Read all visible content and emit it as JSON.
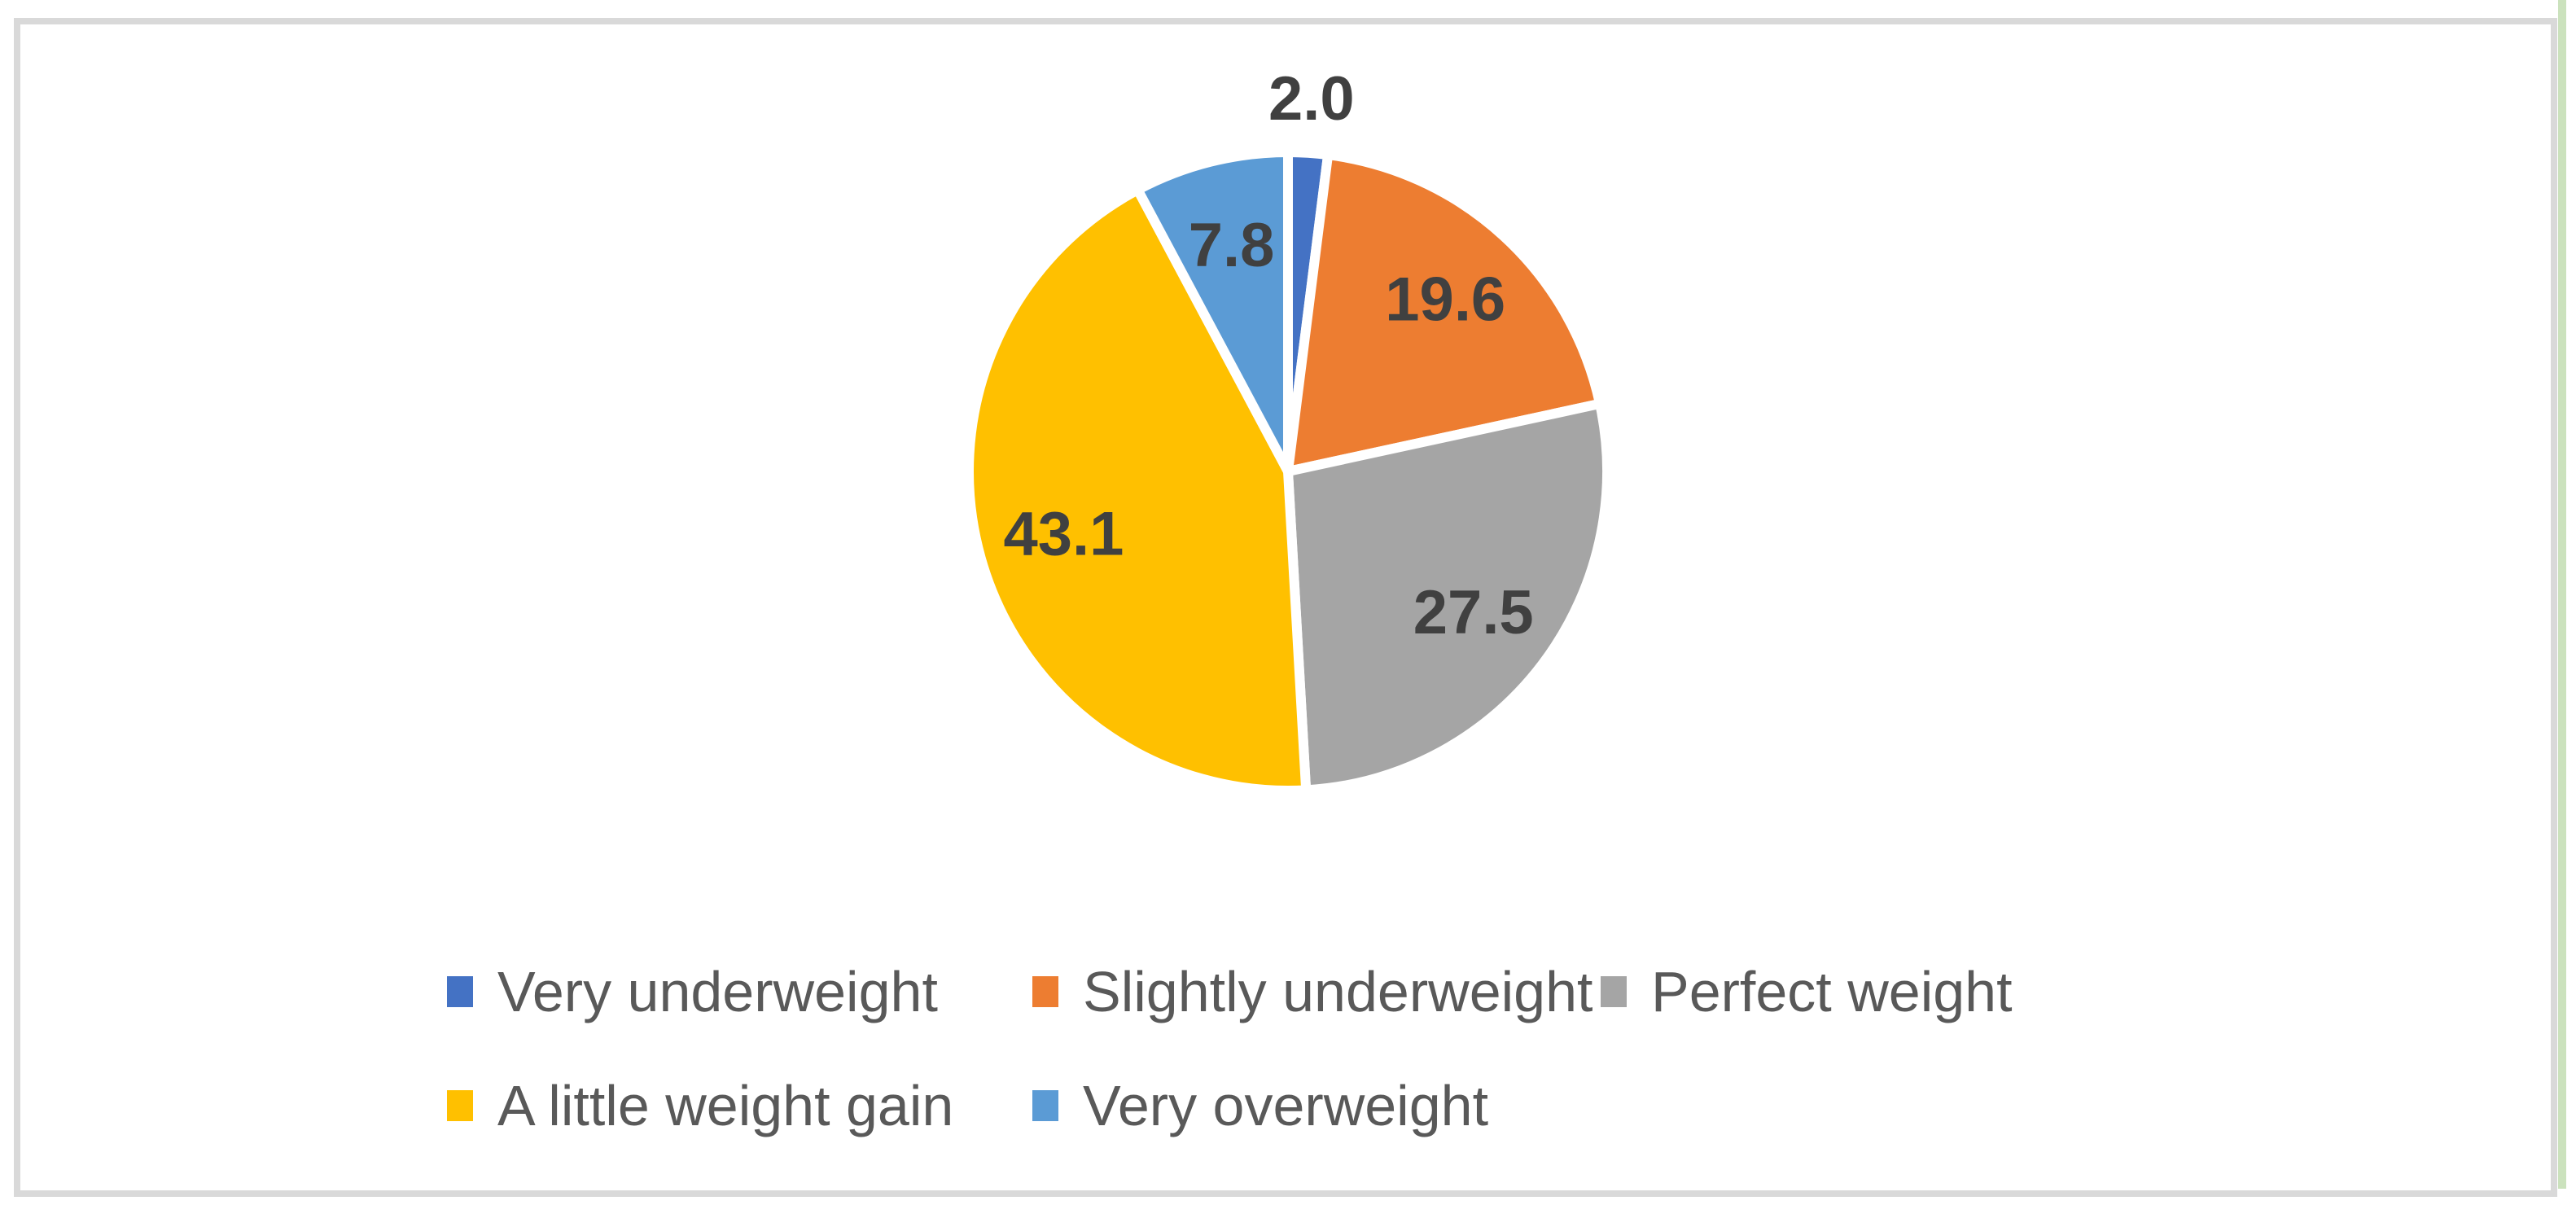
{
  "page": {
    "background_color": "#FFFFFF",
    "frame_border_color": "#D9D9D9",
    "artifact_strip_color": "#CBE2BD"
  },
  "chart_data": {
    "type": "pie",
    "title": "",
    "legend_position": "bottom",
    "start_angle_deg": 0,
    "direction": "clockwise",
    "data_label_color": "#404040",
    "legend_text_color": "#595959",
    "slices": [
      {
        "label": "Very underweight",
        "value": 2.0,
        "display": "2.0",
        "color": "#4472C4",
        "label_outside": true
      },
      {
        "label": "Slightly underweight",
        "value": 19.6,
        "display": "19.6",
        "color": "#ED7D31",
        "label_outside": false
      },
      {
        "label": "Perfect weight",
        "value": 27.5,
        "display": "27.5",
        "color": "#A5A5A5",
        "label_outside": false
      },
      {
        "label": "A little weight gain",
        "value": 43.1,
        "display": "43.1",
        "color": "#FFC000",
        "label_outside": false
      },
      {
        "label": "Very overweight",
        "value": 7.8,
        "display": "7.8",
        "color": "#5B9BD5",
        "label_outside": false
      }
    ]
  }
}
